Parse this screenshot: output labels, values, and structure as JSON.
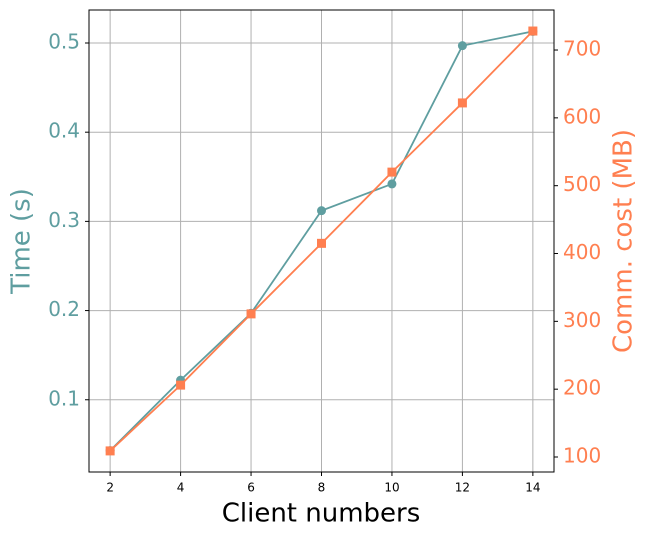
{
  "chart_data": {
    "type": "line",
    "x_label": "Client numbers",
    "y_label": "Time (s)",
    "y2_label": "Comm. cost (MB)",
    "x": [
      2,
      4,
      6,
      8,
      10,
      12,
      14
    ],
    "xlim": [
      1.4,
      14.6
    ],
    "xticks": [
      2,
      4,
      6,
      8,
      10,
      12,
      14
    ],
    "ylim": [
      0.019,
      0.537
    ],
    "yticks": [
      0.1,
      0.2,
      0.3,
      0.4,
      0.5
    ],
    "y2lim": [
      77.9,
      759
    ],
    "y2ticks": [
      100,
      200,
      300,
      400,
      500,
      600,
      700
    ],
    "grid": true,
    "series": [
      {
        "name": "Time",
        "color": "#5f9ea0",
        "marker": "circle",
        "values": [
          0.043,
          0.122,
          0.197,
          0.312,
          0.342,
          0.497,
          0.513
        ]
      },
      {
        "name": "Comm. cost",
        "color": "#ff7f50",
        "marker": "square",
        "axis": "y2",
        "values": [
          109,
          206,
          311,
          415,
          520,
          622,
          728
        ]
      }
    ]
  }
}
